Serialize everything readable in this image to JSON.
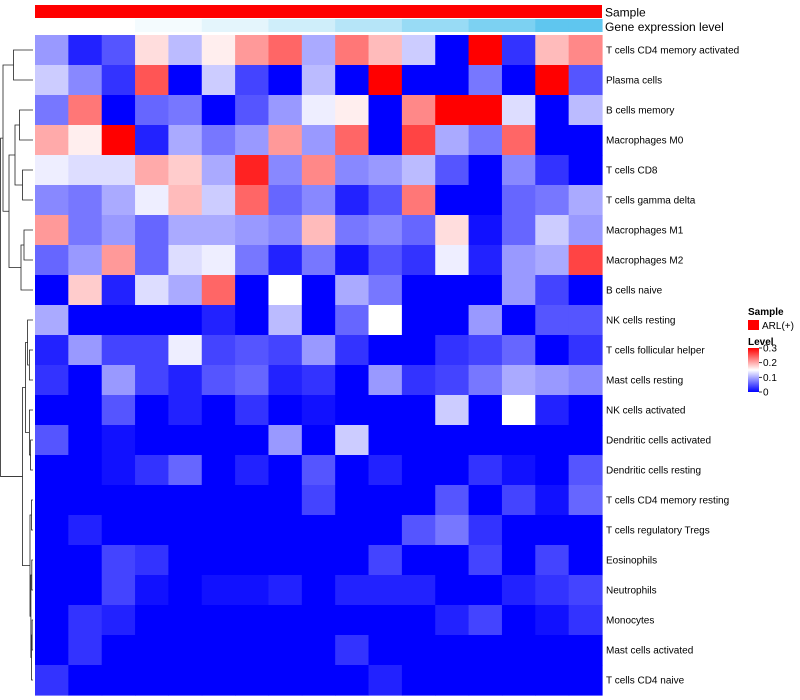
{
  "chart_data": {
    "type": "heatmap",
    "annotation_tracks": [
      {
        "label": "Sample",
        "color": "#ff0000"
      },
      {
        "label": "Gene expression level",
        "colors": [
          "#ffffff",
          "#f4fbfe",
          "#e4f5fc",
          "#cfeefa",
          "#b6e5f8",
          "#98dbf5",
          "#7cd1f2",
          "#5fc6ef"
        ]
      }
    ],
    "rows": [
      "T cells CD4 memory activated",
      "Plasma cells",
      "B cells memory",
      "Macrophages M0",
      "T cells CD8",
      "T cells gamma delta",
      "Macrophages M1",
      "Macrophages M2",
      "B cells naive",
      "NK cells resting",
      "T cells follicular helper",
      "Mast cells resting",
      "NK cells activated",
      "Dendritic cells activated",
      "Dendritic cells resting",
      "T cells CD4 memory resting",
      "T cells regulatory  Tregs",
      "Eosinophils",
      "Neutrophils",
      "Monocytes",
      "Mast cells activated",
      "T cells CD4 naive"
    ],
    "values": [
      [
        0.09,
        0.02,
        0.05,
        0.17,
        0.11,
        0.16,
        0.21,
        0.24,
        0.1,
        0.23,
        0.19,
        0.12,
        0.0,
        0.3,
        0.03,
        0.19,
        0.22
      ],
      [
        0.12,
        0.08,
        0.03,
        0.25,
        0.0,
        0.12,
        0.04,
        0.0,
        0.11,
        0.0,
        0.3,
        0.0,
        0.0,
        0.07,
        0.0,
        0.3,
        0.05
      ],
      [
        0.07,
        0.23,
        0.0,
        0.06,
        0.07,
        0.0,
        0.05,
        0.09,
        0.14,
        0.16,
        0.0,
        0.22,
        0.3,
        0.3,
        0.13,
        0.0,
        0.11
      ],
      [
        0.2,
        0.16,
        0.3,
        0.02,
        0.1,
        0.07,
        0.09,
        0.21,
        0.09,
        0.24,
        0.0,
        0.26,
        0.1,
        0.07,
        0.24,
        0.0,
        0.0
      ],
      [
        0.14,
        0.13,
        0.13,
        0.2,
        0.18,
        0.1,
        0.28,
        0.08,
        0.22,
        0.08,
        0.09,
        0.11,
        0.05,
        0.0,
        0.08,
        0.03,
        0.0
      ],
      [
        0.08,
        0.07,
        0.1,
        0.14,
        0.19,
        0.12,
        0.24,
        0.06,
        0.08,
        0.02,
        0.05,
        0.23,
        0.0,
        0.0,
        0.06,
        0.07,
        0.1
      ],
      [
        0.21,
        0.07,
        0.09,
        0.06,
        0.1,
        0.1,
        0.09,
        0.08,
        0.19,
        0.07,
        0.08,
        0.06,
        0.17,
        0.01,
        0.06,
        0.12,
        0.09
      ],
      [
        0.06,
        0.09,
        0.21,
        0.06,
        0.13,
        0.14,
        0.07,
        0.02,
        0.07,
        0.01,
        0.05,
        0.03,
        0.14,
        0.02,
        0.09,
        0.1,
        0.26
      ],
      [
        0.0,
        0.18,
        0.02,
        0.13,
        0.1,
        0.24,
        0.0,
        0.15,
        0.0,
        0.1,
        0.07,
        0.0,
        0.0,
        0.0,
        0.09,
        0.04,
        0.0
      ],
      [
        0.1,
        0.0,
        0.0,
        0.0,
        0.0,
        0.02,
        0.0,
        0.11,
        0.0,
        0.06,
        0.15,
        0.0,
        0.0,
        0.09,
        0.0,
        0.05,
        0.05
      ],
      [
        0.02,
        0.09,
        0.04,
        0.04,
        0.14,
        0.04,
        0.05,
        0.04,
        0.09,
        0.03,
        0.0,
        0.0,
        0.03,
        0.04,
        0.06,
        0.0,
        0.03
      ],
      [
        0.03,
        0.0,
        0.09,
        0.04,
        0.02,
        0.05,
        0.06,
        0.02,
        0.03,
        0.0,
        0.09,
        0.03,
        0.04,
        0.07,
        0.1,
        0.09,
        0.08
      ],
      [
        0.0,
        0.0,
        0.05,
        0.0,
        0.02,
        0.0,
        0.03,
        0.0,
        0.01,
        0.0,
        0.0,
        0.0,
        0.12,
        0.0,
        0.15,
        0.02,
        0.0
      ],
      [
        0.05,
        0.0,
        0.01,
        0.0,
        0.0,
        0.0,
        0.0,
        0.09,
        0.0,
        0.12,
        0.0,
        0.0,
        0.0,
        0.0,
        0.0,
        0.0,
        0.0
      ],
      [
        0.0,
        0.0,
        0.01,
        0.03,
        0.06,
        0.0,
        0.02,
        0.0,
        0.05,
        0.0,
        0.02,
        0.0,
        0.0,
        0.03,
        0.01,
        0.0,
        0.05
      ],
      [
        0.0,
        0.0,
        0.0,
        0.0,
        0.0,
        0.0,
        0.0,
        0.0,
        0.04,
        0.0,
        0.0,
        0.0,
        0.05,
        0.0,
        0.04,
        0.01,
        0.06
      ],
      [
        0.0,
        0.02,
        0.0,
        0.0,
        0.0,
        0.0,
        0.0,
        0.0,
        0.0,
        0.0,
        0.0,
        0.05,
        0.07,
        0.03,
        0.0,
        0.0,
        0.0
      ],
      [
        0.0,
        0.0,
        0.04,
        0.03,
        0.0,
        0.0,
        0.0,
        0.0,
        0.0,
        0.0,
        0.04,
        0.0,
        0.0,
        0.04,
        0.0,
        0.04,
        0.0
      ],
      [
        0.0,
        0.0,
        0.04,
        0.01,
        0.0,
        0.01,
        0.01,
        0.02,
        0.0,
        0.02,
        0.02,
        0.02,
        0.0,
        0.0,
        0.02,
        0.03,
        0.04
      ],
      [
        0.0,
        0.03,
        0.02,
        0.0,
        0.0,
        0.0,
        0.0,
        0.0,
        0.0,
        0.0,
        0.0,
        0.0,
        0.02,
        0.04,
        0.0,
        0.01,
        0.03
      ],
      [
        0.0,
        0.03,
        0.0,
        0.0,
        0.0,
        0.0,
        0.0,
        0.0,
        0.0,
        0.03,
        0.0,
        0.0,
        0.0,
        0.0,
        0.0,
        0.0,
        0.0
      ],
      [
        0.03,
        0.0,
        0.0,
        0.0,
        0.0,
        0.0,
        0.0,
        0.0,
        0.0,
        0.0,
        0.02,
        0.0,
        0.0,
        0.0,
        0.0,
        0.0,
        0.0
      ]
    ],
    "legend": {
      "sample_title": "Sample",
      "sample_entry": "ARL(+)",
      "sample_color": "#ff0000",
      "level_title": "Level",
      "level_ticks": [
        "0.3",
        "0.2",
        "0.1",
        "0"
      ],
      "level_tick_values": [
        0.3,
        0.2,
        0.1,
        0
      ],
      "placement": "right"
    },
    "color_scale": {
      "low": "#0000ff",
      "mid": "#ffffff",
      "high": "#ff0000",
      "min": 0,
      "mid_value": 0.15,
      "max": 0.3
    },
    "grid": false
  }
}
